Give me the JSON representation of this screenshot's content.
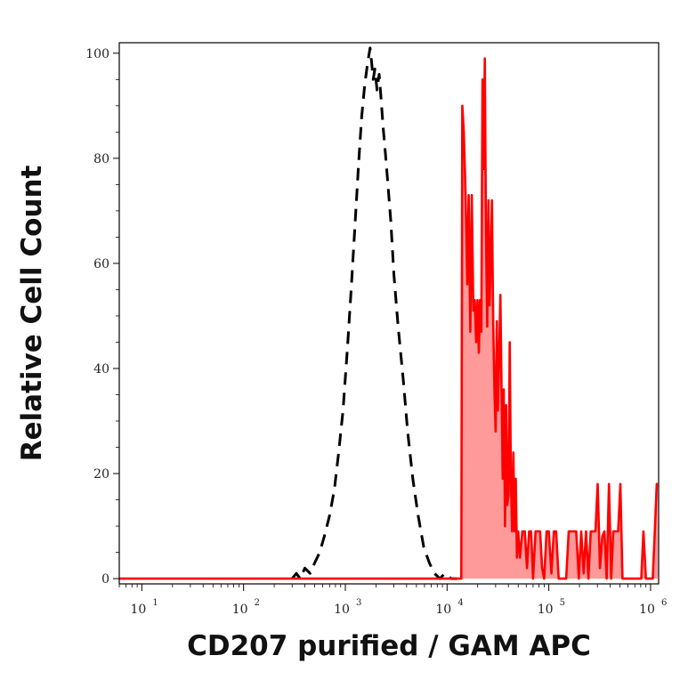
{
  "chart_data": {
    "type": "area",
    "title": "",
    "xlabel": "CD207 purified / GAM APC",
    "ylabel": "Relative Cell Count",
    "x_scale": "log",
    "xlim": [
      6,
      1200000
    ],
    "ylim": [
      -1,
      102
    ],
    "x_ticks": [
      {
        "value": 10,
        "base": "10",
        "exp": "1"
      },
      {
        "value": 100,
        "base": "10",
        "exp": "2"
      },
      {
        "value": 1000,
        "base": "10",
        "exp": "3"
      },
      {
        "value": 10000,
        "base": "10",
        "exp": "4"
      },
      {
        "value": 100000,
        "base": "10",
        "exp": "5"
      },
      {
        "value": 1000000,
        "base": "10",
        "exp": "6"
      }
    ],
    "y_ticks": [
      0,
      20,
      40,
      60,
      80,
      100
    ],
    "grid": false,
    "legend": "none",
    "series": [
      {
        "style": "dashed",
        "color": "#000000",
        "x": [
          300,
          330,
          360,
          400,
          450,
          500,
          560,
          620,
          700,
          780,
          860,
          950,
          1050,
          1150,
          1250,
          1350,
          1450,
          1550,
          1650,
          1750,
          1820,
          1880,
          1950,
          2050,
          2150,
          2250,
          2350,
          2450,
          2600,
          2800,
          3000,
          3300,
          3700,
          4100,
          4600,
          5200,
          5900,
          6700,
          7500,
          8500,
          9500,
          11000,
          12500
        ],
        "y": [
          0,
          1,
          0,
          2,
          1,
          3,
          5,
          8,
          12,
          17,
          24,
          32,
          44,
          56,
          68,
          79,
          88,
          94,
          98,
          101,
          98,
          95,
          97,
          93,
          96,
          91,
          86,
          82,
          76,
          68,
          58,
          48,
          38,
          28,
          19,
          12,
          6,
          3,
          1,
          0,
          1,
          0,
          0
        ]
      },
      {
        "style": "solid-filled",
        "color": "#ff0000",
        "fill": "#ff9a9a",
        "x": [
          6,
          200,
          1000,
          5000,
          13800,
          14100,
          14600,
          15200,
          15800,
          16300,
          16900,
          17500,
          18100,
          18700,
          19300,
          19900,
          20500,
          21100,
          21700,
          22300,
          22900,
          23500,
          24100,
          24800,
          25500,
          26200,
          26900,
          27600,
          28400,
          29200,
          30000,
          30800,
          31600,
          32500,
          33400,
          34300,
          35200,
          36100,
          37100,
          38100,
          39100,
          40200,
          41300,
          42400,
          43600,
          44800,
          46000,
          47300,
          48600,
          50000,
          52000,
          55000,
          58000,
          61000,
          64000,
          67000,
          70000,
          74000,
          78000,
          82000,
          86000,
          90000,
          95000,
          100000,
          106000,
          112000,
          118000,
          125000,
          132000,
          140000,
          148000,
          157000,
          166000,
          176000,
          186000,
          197000,
          208000,
          220000,
          232000,
          245000,
          258000,
          272000,
          287000,
          302000,
          318000,
          335000,
          352000,
          370000,
          390000,
          410000,
          430000,
          455000,
          480000,
          505000,
          530000,
          560000,
          590000,
          620000,
          650000,
          690000,
          730000,
          770000,
          810000,
          850000,
          900000,
          950000,
          1000000,
          1050000,
          1100000,
          1150000,
          1180000
        ],
        "y": [
          0,
          0,
          0,
          0,
          0,
          90,
          85,
          73,
          56,
          73,
          47,
          73,
          51,
          53,
          45,
          53,
          43,
          53,
          47,
          95,
          78,
          99,
          66,
          48,
          72,
          52,
          61,
          72,
          49,
          36,
          28,
          49,
          32,
          42,
          54,
          36,
          19,
          36,
          10,
          33,
          14,
          16,
          45,
          19,
          9,
          24,
          9,
          19,
          4,
          9,
          4,
          9,
          9,
          2,
          9,
          9,
          0,
          9,
          9,
          9,
          2,
          0,
          9,
          9,
          1,
          9,
          9,
          0,
          0,
          0,
          0,
          9,
          9,
          9,
          9,
          0,
          9,
          1,
          9,
          0,
          9,
          9,
          9,
          18,
          2,
          8,
          9,
          0,
          18,
          0,
          9,
          9,
          9,
          18,
          0,
          0,
          0,
          0,
          0,
          0,
          0,
          0,
          0,
          9,
          0,
          0,
          0,
          0,
          9,
          18,
          18
        ]
      }
    ]
  }
}
